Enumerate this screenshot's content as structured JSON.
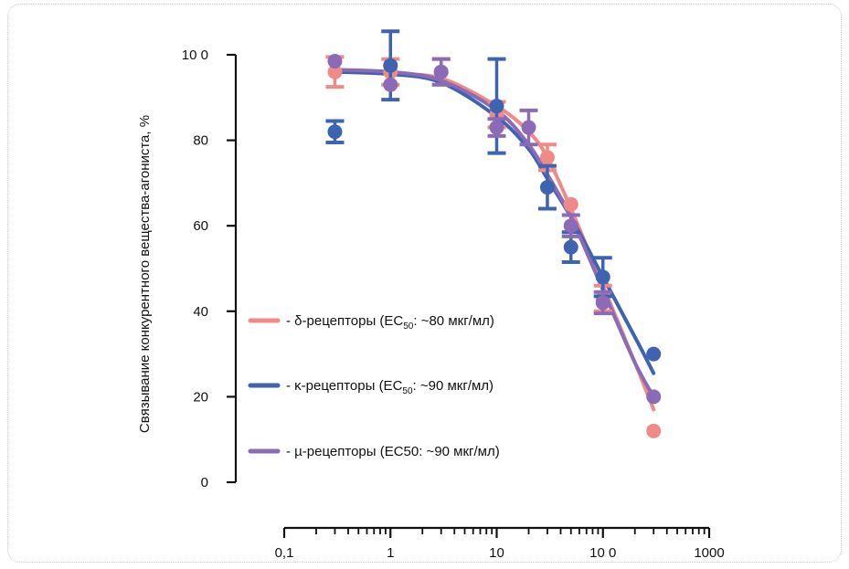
{
  "chart_data": {
    "type": "scatter",
    "xlabel": "",
    "ylabel": "Связывание конкурентного вещества-агониста, %",
    "x_scale": "log",
    "xlim": [
      0.1,
      1000
    ],
    "ylim": [
      0,
      100
    ],
    "x_ticks": [
      "0,1",
      "1",
      "10",
      "10 0",
      "1000"
    ],
    "y_ticks": [
      "0",
      "20",
      "40",
      "60",
      "80",
      "10 0"
    ],
    "grid": false,
    "legend_position": "center-left",
    "series": [
      {
        "name_prefix": "- δ-рецепторы (EC",
        "name_sub": "50",
        "name_suffix": ": ~80 мкг/мл)",
        "color": "#F08A86",
        "points": [
          {
            "x": 0.3,
            "y": 96,
            "err": 3.5
          },
          {
            "x": 1,
            "y": 96,
            "err": 3
          },
          {
            "x": 3,
            "y": 96,
            "err": 3
          },
          {
            "x": 10,
            "y": 86,
            "err": 3
          },
          {
            "x": 30,
            "y": 76,
            "err": 3
          },
          {
            "x": 50,
            "y": 65,
            "err": 0
          },
          {
            "x": 100,
            "y": 43,
            "err": 3
          },
          {
            "x": 300,
            "y": 12,
            "err": 0
          }
        ],
        "fit": [
          {
            "x": 0.3,
            "y": 96
          },
          {
            "x": 1,
            "y": 95.5
          },
          {
            "x": 3,
            "y": 94.5
          },
          {
            "x": 10,
            "y": 88
          },
          {
            "x": 20,
            "y": 82
          },
          {
            "x": 30,
            "y": 76
          },
          {
            "x": 50,
            "y": 64
          },
          {
            "x": 100,
            "y": 46
          },
          {
            "x": 200,
            "y": 28
          },
          {
            "x": 300,
            "y": 17
          }
        ]
      },
      {
        "name_prefix": "- κ-рецепторы (EC",
        "name_sub": "50",
        "name_suffix": ": ~90 мкг/мл)",
        "color": "#3E63B0",
        "points": [
          {
            "x": 0.3,
            "y": 82,
            "err": 2.5
          },
          {
            "x": 1,
            "y": 97.5,
            "err": 8
          },
          {
            "x": 10,
            "y": 88,
            "err": 11
          },
          {
            "x": 30,
            "y": 69,
            "err": 5
          },
          {
            "x": 50,
            "y": 55,
            "err": 3.5
          },
          {
            "x": 100,
            "y": 48,
            "err": 4.5
          },
          {
            "x": 300,
            "y": 30,
            "err": 0
          }
        ],
        "fit": [
          {
            "x": 0.3,
            "y": 96
          },
          {
            "x": 1,
            "y": 95.5
          },
          {
            "x": 3,
            "y": 93.5
          },
          {
            "x": 10,
            "y": 85.5
          },
          {
            "x": 20,
            "y": 78
          },
          {
            "x": 30,
            "y": 71
          },
          {
            "x": 50,
            "y": 62
          },
          {
            "x": 100,
            "y": 48
          },
          {
            "x": 200,
            "y": 34
          },
          {
            "x": 300,
            "y": 25.5
          }
        ]
      },
      {
        "name_prefix": "- µ-рецепторы (EC50: ~90 мкг/мл)",
        "name_sub": "",
        "name_suffix": "",
        "color": "#8B6BB8",
        "points": [
          {
            "x": 0.3,
            "y": 98.5,
            "err": 0
          },
          {
            "x": 1,
            "y": 93,
            "err": 0
          },
          {
            "x": 3,
            "y": 96,
            "err": 3
          },
          {
            "x": 10,
            "y": 83,
            "err": 2
          },
          {
            "x": 20,
            "y": 83,
            "err": 4
          },
          {
            "x": 50,
            "y": 60,
            "err": 2.5
          },
          {
            "x": 100,
            "y": 42,
            "err": 2.5
          },
          {
            "x": 300,
            "y": 20,
            "err": 0
          }
        ],
        "fit": [
          {
            "x": 0.3,
            "y": 96.5
          },
          {
            "x": 1,
            "y": 96
          },
          {
            "x": 3,
            "y": 94
          },
          {
            "x": 10,
            "y": 87
          },
          {
            "x": 20,
            "y": 79
          },
          {
            "x": 30,
            "y": 72
          },
          {
            "x": 50,
            "y": 62
          },
          {
            "x": 100,
            "y": 45
          },
          {
            "x": 200,
            "y": 28
          },
          {
            "x": 300,
            "y": 20
          }
        ]
      }
    ]
  }
}
